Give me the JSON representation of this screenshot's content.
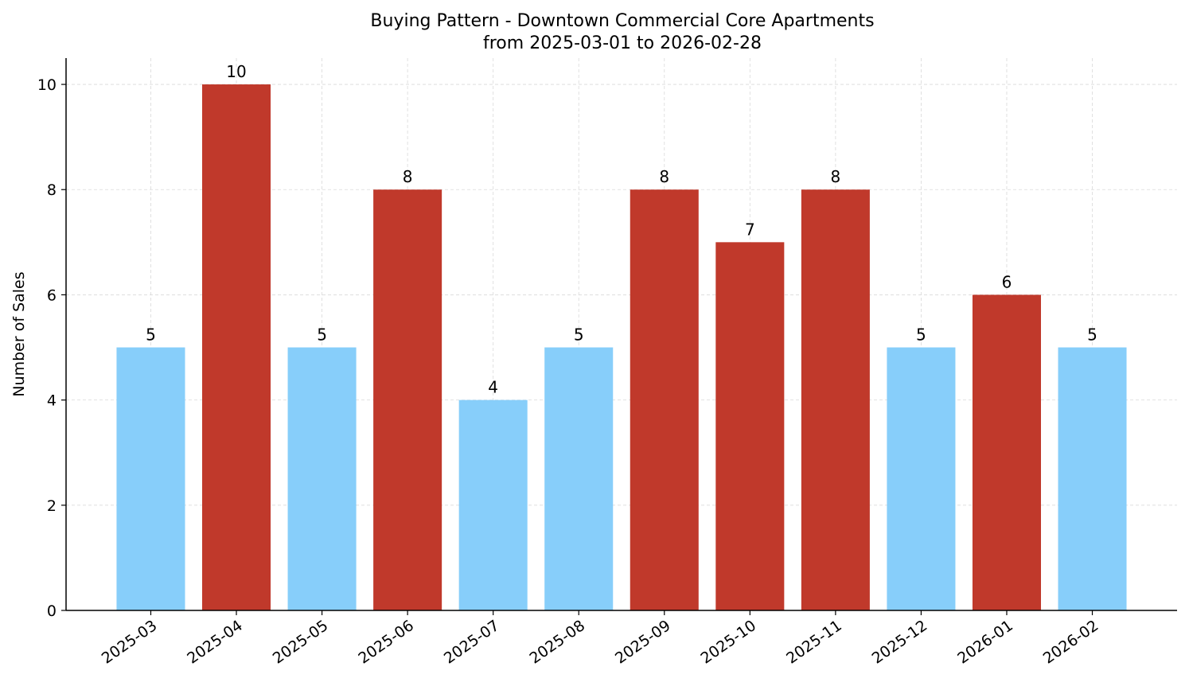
{
  "chart_data": {
    "type": "bar",
    "title": "Buying Pattern - Downtown Commercial Core Apartments",
    "subtitle": "from 2025-03-01 to 2026-02-28",
    "xlabel": "",
    "ylabel": "Number of Sales",
    "categories": [
      "2025-03",
      "2025-04",
      "2025-05",
      "2025-06",
      "2025-07",
      "2025-08",
      "2025-09",
      "2025-10",
      "2025-11",
      "2025-12",
      "2026-01",
      "2026-02"
    ],
    "values": [
      5,
      10,
      5,
      8,
      4,
      5,
      8,
      7,
      8,
      5,
      6,
      5
    ],
    "bar_colors": [
      "#87CEFA",
      "#C0392B",
      "#87CEFA",
      "#C0392B",
      "#87CEFA",
      "#87CEFA",
      "#C0392B",
      "#C0392B",
      "#C0392B",
      "#87CEFA",
      "#C0392B",
      "#87CEFA"
    ],
    "ylim": [
      0,
      10.5
    ],
    "yticks": [
      0,
      2,
      4,
      6,
      8,
      10
    ],
    "grid": true,
    "data_labels": true
  }
}
